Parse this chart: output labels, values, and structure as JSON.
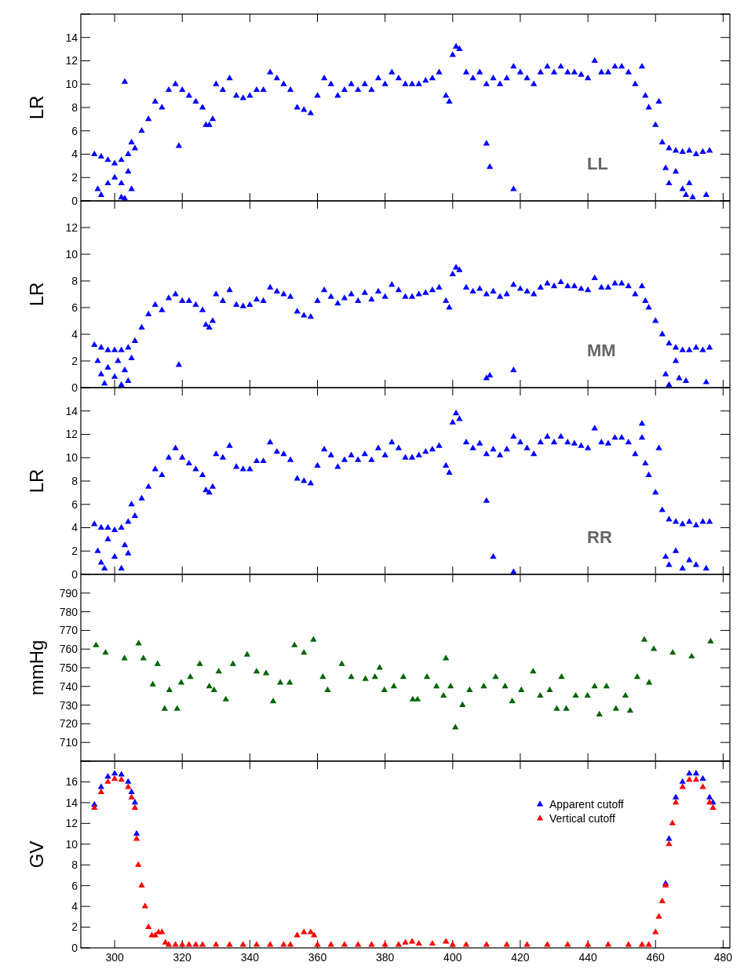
{
  "chart_data": [
    {
      "type": "scatter",
      "ylabel": "LR",
      "annotations": [
        "LL"
      ],
      "marker": "triangle",
      "tick_labels": "y",
      "xlim": [
        290,
        482
      ],
      "xticks": [
        300,
        320,
        340,
        360,
        380,
        400,
        420,
        440,
        460,
        480
      ],
      "ylim": [
        0,
        16
      ],
      "yticks": [
        0,
        2,
        4,
        6,
        8,
        10,
        12,
        14,
        {
          "value": 16,
          "label": null
        }
      ],
      "series": [
        {
          "color": "#0000ff",
          "x": [
            294,
            296,
            298,
            300,
            302,
            304,
            306,
            308,
            310,
            312,
            314,
            316,
            318,
            320,
            322,
            324,
            326,
            327,
            328,
            329,
            330,
            332,
            334,
            336,
            338,
            340,
            342,
            344,
            346,
            348,
            350,
            352,
            354,
            356,
            358,
            360,
            362,
            364,
            366,
            368,
            370,
            372,
            374,
            376,
            378,
            380,
            382,
            384,
            386,
            388,
            390,
            392,
            394,
            396,
            398,
            399,
            400,
            401,
            402,
            404,
            406,
            408,
            410,
            412,
            414,
            416,
            418,
            420,
            422,
            424,
            426,
            428,
            430,
            432,
            434,
            436,
            438,
            440,
            442,
            444,
            446,
            448,
            450,
            452,
            454,
            456,
            457,
            458,
            460,
            462,
            464,
            466,
            468,
            470,
            472,
            474,
            476,
            295,
            296,
            298,
            300,
            302,
            303,
            304,
            305,
            302,
            303,
            305,
            319,
            410,
            411,
            418,
            461,
            463,
            464,
            466,
            468,
            469,
            470,
            471,
            475
          ],
          "values": [
            4,
            3.8,
            3.5,
            3.2,
            3.5,
            4,
            4.5,
            6,
            7,
            8.5,
            8,
            9.5,
            10,
            9.5,
            9,
            8.5,
            8,
            6.5,
            6.5,
            7,
            10,
            9.5,
            10.5,
            9,
            8.8,
            9,
            9.5,
            9.5,
            11,
            10.5,
            10,
            9.5,
            8,
            7.8,
            7.5,
            9,
            10.5,
            10,
            9,
            9.5,
            10,
            9.5,
            10,
            9.5,
            10.5,
            10,
            11,
            10.5,
            10,
            10,
            10,
            10.3,
            10.5,
            11,
            9,
            8.5,
            12.5,
            13.2,
            13,
            11,
            10.5,
            11,
            10,
            10.5,
            10,
            10.5,
            11.5,
            11,
            10.5,
            10,
            11,
            11.5,
            11,
            11.5,
            11,
            11,
            10.8,
            10.5,
            12,
            11,
            11,
            11.5,
            11.5,
            11,
            10,
            11.5,
            9,
            8,
            6.5,
            5,
            4.5,
            4.3,
            4.2,
            4.3,
            4,
            4.2,
            4.3,
            1,
            0.5,
            1.5,
            2,
            1.5,
            10.2,
            2.5,
            1,
            0.3,
            0.2,
            5,
            4.7,
            4.9,
            2.9,
            1,
            8.5,
            2.8,
            1.5,
            2.5,
            1,
            0.5,
            1.5,
            0.3,
            0.5
          ]
        }
      ]
    },
    {
      "type": "scatter",
      "ylabel": "LR",
      "annotations": [
        "MM"
      ],
      "marker": "triangle",
      "tick_labels": "y",
      "xlim": [
        290,
        482
      ],
      "xticks": [
        300,
        320,
        340,
        360,
        380,
        400,
        420,
        440,
        460,
        480
      ],
      "ylim": [
        0,
        14
      ],
      "yticks": [
        0,
        2,
        4,
        6,
        8,
        10,
        12,
        {
          "value": 14,
          "label": null
        }
      ],
      "series": [
        {
          "color": "#0000ff",
          "x": [
            294,
            296,
            298,
            300,
            302,
            304,
            306,
            308,
            310,
            312,
            314,
            316,
            318,
            320,
            322,
            324,
            326,
            327,
            328,
            329,
            330,
            332,
            334,
            336,
            338,
            340,
            342,
            344,
            346,
            348,
            350,
            352,
            354,
            356,
            358,
            360,
            362,
            364,
            366,
            368,
            370,
            372,
            374,
            376,
            378,
            380,
            382,
            384,
            386,
            388,
            390,
            392,
            394,
            396,
            398,
            399,
            400,
            401,
            402,
            404,
            406,
            408,
            410,
            412,
            414,
            416,
            418,
            420,
            422,
            424,
            426,
            428,
            430,
            432,
            434,
            436,
            438,
            440,
            442,
            444,
            446,
            448,
            450,
            452,
            454,
            456,
            457,
            458,
            460,
            462,
            464,
            466,
            468,
            470,
            472,
            474,
            476,
            295,
            296,
            297,
            298,
            300,
            301,
            302,
            303,
            304,
            305,
            319,
            410,
            411,
            418,
            463,
            464,
            466,
            467,
            469,
            475
          ],
          "values": [
            3.2,
            3,
            2.8,
            2.8,
            2.8,
            3,
            3.5,
            4.5,
            5.5,
            6.2,
            5.8,
            6.7,
            7,
            6.5,
            6.5,
            6.2,
            5.8,
            4.7,
            4.5,
            5,
            7,
            6.5,
            7.3,
            6.2,
            6.1,
            6.2,
            6.6,
            6.5,
            7.5,
            7.2,
            7,
            6.8,
            5.7,
            5.4,
            5.3,
            6.5,
            7.3,
            6.8,
            6.3,
            6.7,
            7,
            6.5,
            7.1,
            6.6,
            7.2,
            6.8,
            7.7,
            7.3,
            6.8,
            6.8,
            7,
            7.1,
            7.3,
            7.5,
            6.5,
            6,
            8.5,
            9,
            8.8,
            7.5,
            7.2,
            7.4,
            7,
            7.2,
            6.8,
            7,
            7.7,
            7.4,
            7.2,
            7,
            7.5,
            7.8,
            7.6,
            7.9,
            7.6,
            7.6,
            7.4,
            7.3,
            8.2,
            7.5,
            7.5,
            7.8,
            7.8,
            7.6,
            7,
            7.6,
            6.5,
            6,
            5,
            4,
            3.3,
            3,
            2.8,
            2.8,
            3,
            2.8,
            3,
            2,
            1,
            0.3,
            1.5,
            0.8,
            2,
            0.2,
            1.3,
            0.5,
            2.2,
            1.7,
            0.7,
            0.9,
            1.3,
            1,
            0.2,
            2,
            0.7,
            0.5,
            0.4
          ]
        }
      ]
    },
    {
      "type": "scatter",
      "ylabel": "LR",
      "annotations": [
        "RR"
      ],
      "marker": "triangle",
      "tick_labels": "y",
      "xlim": [
        290,
        482
      ],
      "xticks": [
        300,
        320,
        340,
        360,
        380,
        400,
        420,
        440,
        460,
        480
      ],
      "ylim": [
        0,
        16
      ],
      "yticks": [
        0,
        2,
        4,
        6,
        8,
        10,
        12,
        14,
        {
          "value": 16,
          "label": null
        }
      ],
      "series": [
        {
          "color": "#0000ff",
          "x": [
            294,
            296,
            298,
            300,
            302,
            304,
            306,
            308,
            310,
            312,
            314,
            316,
            318,
            320,
            322,
            324,
            326,
            327,
            328,
            329,
            330,
            332,
            334,
            336,
            338,
            340,
            342,
            344,
            346,
            348,
            350,
            352,
            354,
            356,
            358,
            360,
            362,
            364,
            366,
            368,
            370,
            372,
            374,
            376,
            378,
            380,
            382,
            384,
            386,
            388,
            390,
            392,
            394,
            396,
            398,
            399,
            400,
            401,
            402,
            404,
            406,
            408,
            410,
            412,
            414,
            416,
            418,
            420,
            422,
            424,
            426,
            428,
            430,
            432,
            434,
            436,
            438,
            440,
            442,
            444,
            446,
            448,
            450,
            452,
            454,
            456,
            457,
            458,
            460,
            462,
            464,
            466,
            468,
            470,
            472,
            474,
            476,
            295,
            296,
            297,
            298,
            300,
            302,
            303,
            304,
            305,
            410,
            412,
            418,
            456,
            461,
            463,
            464,
            466,
            468,
            470,
            472,
            475
          ],
          "values": [
            4.3,
            4,
            4,
            3.8,
            4,
            4.5,
            5,
            6.5,
            7.5,
            9,
            8.5,
            10,
            10.8,
            10,
            9.5,
            9,
            8.5,
            7.2,
            7,
            7.5,
            10.3,
            10,
            11,
            9.2,
            9,
            9,
            9.7,
            9.7,
            11.3,
            10.5,
            10.3,
            9.8,
            8.2,
            8,
            7.8,
            9.3,
            10.7,
            10.2,
            9.2,
            9.8,
            10.2,
            9.8,
            10.3,
            9.8,
            10.8,
            10.2,
            11.3,
            10.8,
            10,
            10,
            10.2,
            10.5,
            10.7,
            11,
            9.3,
            8.7,
            13,
            13.8,
            13.3,
            11.3,
            10.8,
            11.2,
            10.3,
            10.7,
            10.2,
            10.7,
            11.8,
            11.3,
            10.8,
            10.3,
            11.3,
            11.8,
            11.3,
            11.8,
            11.3,
            11.2,
            11,
            10.8,
            12.5,
            11.3,
            11.2,
            11.7,
            11.7,
            11.3,
            10.3,
            11.7,
            9.5,
            8.5,
            7,
            5.5,
            4.7,
            4.5,
            4.3,
            4.5,
            4.2,
            4.5,
            4.5,
            2,
            1,
            0.5,
            3,
            1.5,
            0.5,
            2.5,
            1.8,
            6,
            6.3,
            1.5,
            0.2,
            12.9,
            10.8,
            1.5,
            0.8,
            2,
            0.5,
            1.2,
            0.8,
            0.5
          ]
        }
      ]
    },
    {
      "type": "scatter",
      "ylabel": "mmHg",
      "marker": "triangle",
      "tick_labels": "y",
      "xlim": [
        290,
        482
      ],
      "xticks": [
        300,
        320,
        340,
        360,
        380,
        400,
        420,
        440,
        460,
        480
      ],
      "ylim": [
        700,
        800
      ],
      "yticks": [
        {
          "value": 700,
          "label": null
        },
        710,
        720,
        730,
        740,
        750,
        760,
        770,
        780,
        790,
        {
          "value": 800,
          "label": null
        }
      ],
      "series": [
        {
          "color": "#006400",
          "x": [
            294.5,
            297.3,
            302.9,
            307.1,
            308.5,
            311.3,
            312.7,
            314.8,
            316.2,
            318.5,
            319.7,
            322.4,
            325.2,
            328,
            329.4,
            330.8,
            332.9,
            335,
            339.2,
            342,
            344.8,
            346.9,
            349,
            351.8,
            353.2,
            356,
            358.8,
            361.6,
            363,
            367.2,
            370,
            374.2,
            377,
            378.4,
            379.8,
            382.6,
            385.4,
            388.2,
            389.6,
            392.4,
            395.2,
            397.3,
            398,
            399.4,
            400.8,
            402.9,
            405,
            409.2,
            412.7,
            415.5,
            417.6,
            420.3,
            423.8,
            425.9,
            428.7,
            430.8,
            432.2,
            433.6,
            436.4,
            439.9,
            442,
            443.4,
            445.5,
            448.3,
            451.1,
            452.5,
            454.6,
            456.7,
            458.1,
            459.5,
            465.1,
            470.7,
            476.3
          ],
          "values": [
            762,
            758,
            755,
            763,
            755,
            741,
            752,
            728,
            738,
            728,
            742,
            745,
            752,
            740,
            738,
            748,
            733,
            752,
            757,
            748,
            747,
            732,
            742,
            742,
            762,
            758,
            765,
            745,
            738,
            752,
            745,
            744,
            745,
            750,
            738,
            740,
            745,
            733,
            733,
            745,
            740,
            735,
            755,
            740,
            718,
            730,
            738,
            740,
            745,
            740,
            732,
            738,
            748,
            735,
            738,
            728,
            745,
            728,
            735,
            735,
            740,
            725,
            740,
            728,
            735,
            727,
            745,
            765,
            742,
            760,
            758,
            756,
            764
          ]
        }
      ]
    },
    {
      "type": "scatter",
      "ylabel": "GV",
      "marker": "triangle",
      "legend": "top right",
      "xlim": [
        290,
        482
      ],
      "xticks": [
        300,
        320,
        340,
        360,
        380,
        400,
        420,
        440,
        460,
        480
      ],
      "ylim": [
        0,
        18
      ],
      "yticks": [
        0,
        2,
        4,
        6,
        8,
        10,
        12,
        14,
        16,
        {
          "value": 18,
          "label": null
        }
      ],
      "series": [
        {
          "name": "Apparent cutoff",
          "color": "#0000ff",
          "x": [
            294,
            296,
            298,
            300,
            302,
            304,
            305,
            306,
            306.5,
            463,
            464,
            466,
            468,
            470,
            472,
            474,
            476,
            477
          ],
          "values": [
            13.8,
            15.5,
            16.5,
            16.8,
            16.7,
            16,
            15,
            14,
            11,
            6.2,
            10.5,
            14.5,
            16,
            16.8,
            16.8,
            16.3,
            14.5,
            14
          ]
        },
        {
          "name": "Vertical cutoff",
          "color": "#ff0000",
          "x": [
            294,
            296,
            298,
            300,
            302,
            304,
            305,
            306,
            306.5,
            307,
            308,
            309,
            310,
            311,
            312,
            313,
            314,
            315,
            316,
            318,
            320,
            322,
            324,
            326,
            330,
            334,
            338,
            342,
            346,
            350,
            352,
            354,
            356,
            358,
            359,
            360,
            364,
            368,
            372,
            376,
            380,
            384,
            386,
            388,
            390,
            394,
            398,
            400,
            404,
            410,
            416,
            422,
            428,
            434,
            440,
            446,
            452,
            456,
            458,
            460,
            461,
            462,
            463,
            464,
            465,
            466,
            468,
            470,
            472,
            474,
            476,
            477
          ],
          "values": [
            13.5,
            15,
            16,
            16.3,
            16.2,
            15.5,
            14.5,
            13.5,
            10.5,
            8,
            6,
            4,
            2,
            1.2,
            1.2,
            1.5,
            1.5,
            0.5,
            0.3,
            0.3,
            0.3,
            0.3,
            0.3,
            0.3,
            0.3,
            0.3,
            0.3,
            0.3,
            0.3,
            0.3,
            0.3,
            1.2,
            1.5,
            1.5,
            1.2,
            0.3,
            0.3,
            0.3,
            0.3,
            0.3,
            0.3,
            0.3,
            0.5,
            0.6,
            0.4,
            0.4,
            0.6,
            0.3,
            0.3,
            0.3,
            0.3,
            0.3,
            0.3,
            0.3,
            0.3,
            0.3,
            0.3,
            0.3,
            0.3,
            1.5,
            3,
            4.5,
            6,
            10,
            12,
            14,
            15.5,
            16.2,
            16.2,
            15.5,
            14,
            13.5
          ]
        }
      ]
    }
  ]
}
